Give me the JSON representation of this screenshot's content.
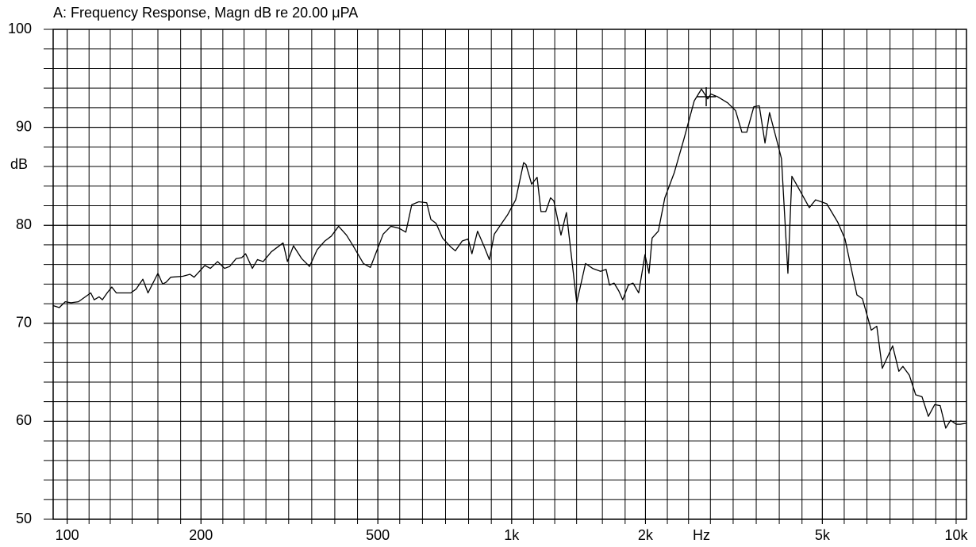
{
  "chart_data": {
    "type": "line",
    "title": "A: Frequency Response, Magn dB re 20.00 μPA",
    "ylabel": "dB",
    "xlabel": "Hz",
    "xscale": "log",
    "grid": true,
    "color": "#000000",
    "xlim": [
      93,
      10550
    ],
    "ylim": [
      50,
      100
    ],
    "xticks": [
      100,
      200,
      500,
      {
        "value": 1000,
        "label": "1k"
      },
      {
        "value": 2000,
        "label": "2k"
      },
      {
        "value": 5000,
        "label": "5k"
      },
      {
        "value": 10000,
        "label": "10k"
      }
    ],
    "yticks": [
      50,
      60,
      70,
      80,
      90,
      100
    ],
    "xminorticks": [
      100,
      112,
      125,
      140,
      160,
      180,
      200,
      224,
      250,
      280,
      315,
      355,
      400,
      450,
      500,
      560,
      630,
      710,
      800,
      900,
      1000,
      1120,
      1250,
      1400,
      1600,
      1800,
      2000,
      2240,
      2500,
      2800,
      3150,
      3550,
      4000,
      4500,
      5000,
      5600,
      6300,
      7100,
      8000,
      9000,
      10000
    ],
    "yminorticks": [
      52,
      54,
      56,
      58,
      60,
      62,
      64,
      66,
      68,
      70,
      72,
      74,
      76,
      78,
      80,
      82,
      84,
      86,
      88,
      90,
      92,
      94,
      96,
      98
    ],
    "x": [
      93,
      96,
      99,
      102,
      106,
      113,
      115,
      118,
      120,
      123,
      126,
      129,
      139,
      143,
      148,
      152,
      160,
      164,
      167,
      171,
      182,
      189,
      193,
      204,
      210,
      218,
      226,
      232,
      240,
      247,
      252,
      261,
      268,
      276,
      288,
      306,
      313,
      323,
      337,
      351,
      365,
      380,
      393,
      408,
      425,
      440,
      464,
      481,
      514,
      535,
      558,
      578,
      596,
      618,
      644,
      658,
      676,
      699,
      729,
      747,
      774,
      798,
      814,
      838,
      866,
      891,
      914,
      980,
      1021,
      1064,
      1077,
      1109,
      1141,
      1164,
      1193,
      1223,
      1244,
      1291,
      1328,
      1401,
      1466,
      1521,
      1585,
      1631,
      1660,
      1700,
      1742,
      1778,
      1830,
      1875,
      1931,
      1995,
      2037,
      2070,
      2138,
      2211,
      2323,
      2441,
      2575,
      2673,
      2762,
      2806,
      2912,
      3061,
      3190,
      3296,
      3380,
      3506,
      3606,
      3715,
      3803,
      3963,
      4046,
      4183,
      4270,
      4395,
      4674,
      4828,
      5115,
      5418,
      5623,
      5981,
      6155,
      6442,
      6629,
      6821,
      7197,
      7432,
      7589,
      7848,
      8110,
      8379,
      8660,
      8947,
      9206,
      9475,
      9716,
      10000,
      10209,
      10550
    ],
    "values": [
      71.8,
      71.6,
      72.2,
      72.1,
      72.2,
      73.1,
      72.4,
      72.7,
      72.4,
      73.1,
      73.7,
      73.1,
      73.1,
      73.5,
      74.5,
      73.1,
      75.1,
      74.0,
      74.2,
      74.7,
      74.8,
      75.0,
      74.7,
      75.9,
      75.6,
      76.3,
      75.6,
      75.8,
      76.6,
      76.7,
      77.1,
      75.6,
      76.5,
      76.3,
      77.3,
      78.2,
      76.3,
      77.9,
      76.6,
      75.8,
      77.5,
      78.4,
      78.9,
      79.9,
      79.0,
      77.9,
      76.1,
      75.7,
      79.1,
      79.9,
      79.7,
      79.3,
      82.1,
      82.4,
      82.3,
      80.6,
      80.2,
      78.7,
      77.8,
      77.4,
      78.4,
      78.6,
      77.1,
      79.4,
      77.9,
      76.5,
      79.1,
      81.1,
      82.6,
      86.4,
      86.2,
      84.2,
      84.9,
      81.4,
      81.4,
      82.8,
      82.5,
      79.0,
      81.3,
      72.1,
      76.1,
      75.6,
      75.3,
      75.5,
      73.9,
      74.1,
      73.3,
      72.4,
      73.9,
      74.1,
      73.1,
      77.0,
      75.1,
      78.7,
      79.4,
      82.8,
      85.4,
      88.8,
      92.7,
      93.9,
      92.9,
      93.4,
      93.1,
      92.5,
      91.7,
      89.5,
      89.5,
      92.1,
      92.2,
      88.4,
      91.5,
      88.4,
      86.8,
      75.1,
      85.0,
      84.0,
      81.8,
      82.6,
      82.2,
      80.3,
      78.6,
      72.9,
      72.5,
      69.3,
      69.7,
      65.4,
      67.7,
      65.1,
      65.6,
      64.7,
      62.7,
      62.5,
      60.5,
      61.7,
      61.6,
      59.3,
      60.1,
      59.7,
      59.7,
      59.8
    ]
  }
}
